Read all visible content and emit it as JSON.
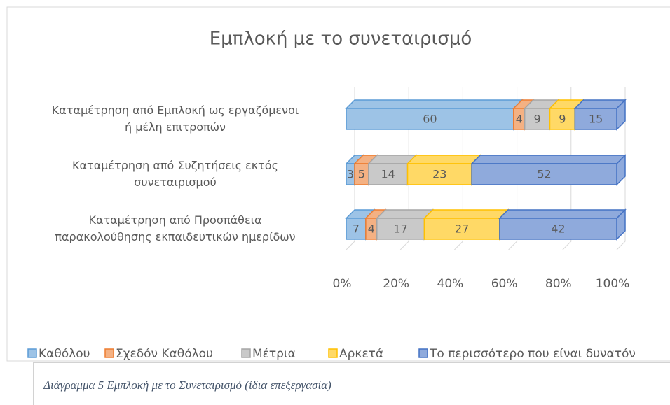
{
  "chart_data": {
    "type": "bar",
    "orientation": "horizontal",
    "stacked": "percent",
    "three_d": true,
    "title": "Εμπλοκή με το συνεταιρισμό",
    "categories": [
      "Καταμέτρηση από Εμπλοκή ως εργαζόμενοι\nή μέλη επιτροπών",
      "Καταμέτρηση από Συζητήσεις εκτός\nσυνεταιρισμού",
      "Καταμέτρηση από Προσπάθεια\nπαρακολούθησης εκπαιδευτικών ημερίδων"
    ],
    "series": [
      {
        "name": "Καθόλου",
        "color": "#9dc3e6",
        "edge": "#5b9bd5",
        "values": [
          60,
          3,
          7
        ]
      },
      {
        "name": "Σχεδόν Καθόλου",
        "color": "#f4b183",
        "edge": "#ed7d31",
        "values": [
          4,
          5,
          4
        ]
      },
      {
        "name": "Μέτρια",
        "color": "#c9c9c9",
        "edge": "#a5a5a5",
        "values": [
          9,
          14,
          17
        ]
      },
      {
        "name": "Αρκετά",
        "color": "#ffd966",
        "edge": "#ffc000",
        "values": [
          9,
          23,
          27
        ]
      },
      {
        "name": "Το περισσότερο που είναι δυνατόν",
        "color": "#8faadc",
        "edge": "#4472c4",
        "values": [
          15,
          52,
          42
        ]
      }
    ],
    "xlim": [
      0,
      100
    ],
    "xticks": [
      {
        "value": 0,
        "label": "0%"
      },
      {
        "value": 20,
        "label": "20%"
      },
      {
        "value": 40,
        "label": "40%"
      },
      {
        "value": 60,
        "label": "60%"
      },
      {
        "value": 80,
        "label": "80%"
      },
      {
        "value": 100,
        "label": "100%"
      }
    ],
    "grid": true,
    "legend": "bottom"
  },
  "caption": "Διάγραμμα 5 Εμπλοκή με το Συνεταιρισμό (ίδια επεξεργασία)"
}
